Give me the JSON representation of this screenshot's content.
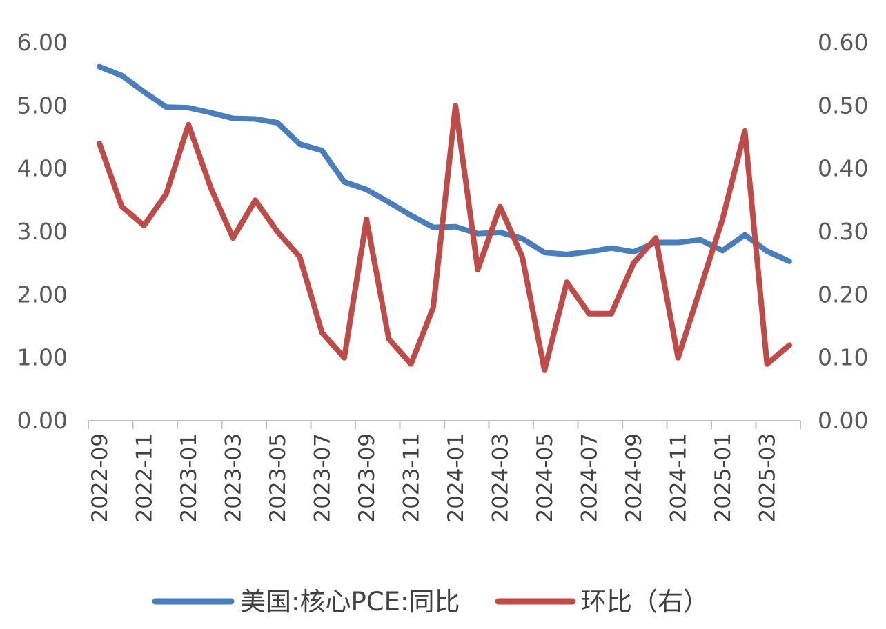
{
  "chart_data": {
    "type": "line",
    "x": [
      "2022-09",
      "2022-10",
      "2022-11",
      "2022-12",
      "2023-01",
      "2023-02",
      "2023-03",
      "2023-04",
      "2023-05",
      "2023-06",
      "2023-07",
      "2023-08",
      "2023-09",
      "2023-10",
      "2023-11",
      "2023-12",
      "2024-01",
      "2024-02",
      "2024-03",
      "2024-04",
      "2024-05",
      "2024-06",
      "2024-07",
      "2024-08",
      "2024-09",
      "2024-10",
      "2024-11",
      "2024-12",
      "2025-01",
      "2025-02",
      "2025-03",
      "2025-04"
    ],
    "x_tick_labels": [
      "2022-09",
      "2022-11",
      "2023-01",
      "2023-03",
      "2023-05",
      "2023-07",
      "2023-09",
      "2023-11",
      "2024-01",
      "2024-03",
      "2024-05",
      "2024-07",
      "2024-09",
      "2024-11",
      "2025-01",
      "2025-03"
    ],
    "series": [
      {
        "name": "美国:核心PCE:同比",
        "axis": "left",
        "color": "#4a7ebb",
        "values": [
          5.62,
          5.48,
          5.22,
          4.98,
          4.97,
          4.89,
          4.8,
          4.79,
          4.73,
          4.39,
          4.29,
          3.79,
          3.67,
          3.47,
          3.26,
          3.07,
          3.08,
          2.97,
          2.99,
          2.89,
          2.67,
          2.64,
          2.68,
          2.74,
          2.68,
          2.83,
          2.83,
          2.87,
          2.7,
          2.95,
          2.69,
          2.53
        ]
      },
      {
        "name": "环比（右）",
        "axis": "right",
        "color": "#be4b48",
        "values": [
          0.44,
          0.34,
          0.31,
          0.36,
          0.47,
          0.37,
          0.29,
          0.35,
          0.3,
          0.26,
          0.14,
          0.1,
          0.32,
          0.13,
          0.09,
          0.18,
          0.5,
          0.24,
          0.34,
          0.26,
          0.08,
          0.22,
          0.17,
          0.17,
          0.25,
          0.29,
          0.1,
          0.21,
          0.32,
          0.46,
          0.09,
          0.12
        ]
      }
    ],
    "y_left_range": [
      0,
      6
    ],
    "y_left_ticks": [
      "0.00",
      "1.00",
      "2.00",
      "3.00",
      "4.00",
      "5.00",
      "6.00"
    ],
    "y_right_range": [
      0,
      0.6
    ],
    "y_right_ticks": [
      "0.00",
      "0.10",
      "0.20",
      "0.30",
      "0.40",
      "0.50",
      "0.60"
    ],
    "grid": false,
    "legend_position": "bottom"
  }
}
